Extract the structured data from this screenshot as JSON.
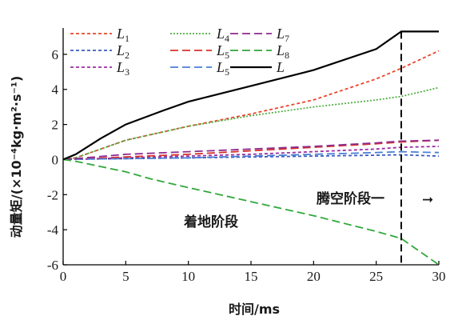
{
  "chart_data": {
    "type": "line",
    "xlabel": "时间/ms",
    "ylabel": "动量矩/(×10⁻⁴kg·m²·s⁻¹)",
    "xlim": [
      0,
      30
    ],
    "ylim": [
      -6,
      7.5
    ],
    "xticks": [
      0,
      5,
      10,
      15,
      20,
      25,
      30
    ],
    "yticks": [
      -6,
      -4,
      -2,
      0,
      2,
      4,
      6
    ],
    "grid": false,
    "legend_position": "top",
    "annotations": {
      "phase_change_x": 27,
      "landing_phase": "着地阶段",
      "flight_phase": "腾空阶段一",
      "arrow": "➞"
    },
    "series": [
      {
        "name": "L1",
        "base": "L",
        "sub": "1",
        "color": "#e8452c",
        "dash": "4,3",
        "x": [
          0,
          1,
          5,
          10,
          15,
          20,
          25,
          27,
          30
        ],
        "y": [
          0,
          0.1,
          1.1,
          1.9,
          2.6,
          3.4,
          4.6,
          5.2,
          6.2
        ]
      },
      {
        "name": "L2",
        "base": "L",
        "sub": "2",
        "color": "#3a5bbf",
        "dash": "4,3",
        "x": [
          0,
          1,
          5,
          10,
          15,
          20,
          25,
          27,
          30
        ],
        "y": [
          0,
          0.02,
          0.05,
          0.1,
          0.15,
          0.2,
          0.25,
          0.27,
          0.2
        ]
      },
      {
        "name": "L3",
        "base": "L",
        "sub": "3",
        "color": "#9a2ea1",
        "dash": "4,3",
        "x": [
          0,
          1,
          5,
          10,
          15,
          20,
          25,
          27,
          30
        ],
        "y": [
          0,
          0.02,
          0.1,
          0.2,
          0.3,
          0.45,
          0.6,
          0.7,
          0.75
        ]
      },
      {
        "name": "L4",
        "base": "L",
        "sub": "4",
        "color": "#4fae43",
        "dash": "2,2",
        "x": [
          0,
          1,
          5,
          10,
          15,
          20,
          25,
          27,
          30
        ],
        "y": [
          0,
          0.1,
          1.1,
          1.9,
          2.5,
          3.0,
          3.4,
          3.6,
          4.1
        ]
      },
      {
        "name": "L5",
        "base": "L",
        "sub": "5",
        "color": "#d9302c",
        "dash": "10,5",
        "x": [
          0,
          1,
          5,
          10,
          15,
          20,
          25,
          27,
          30
        ],
        "y": [
          0,
          0.02,
          0.15,
          0.3,
          0.5,
          0.7,
          0.9,
          1.0,
          1.1
        ]
      },
      {
        "name": "L5",
        "base": "L",
        "sub": "5",
        "color": "#4a7fd6",
        "dash": "10,5",
        "x": [
          0,
          1,
          5,
          10,
          15,
          20,
          25,
          27,
          30
        ],
        "y": [
          0,
          0.02,
          0.05,
          0.1,
          0.2,
          0.3,
          0.4,
          0.45,
          0.4
        ]
      },
      {
        "name": "L7",
        "base": "L",
        "sub": "7",
        "color": "#8e2a8e",
        "dash": "10,5",
        "x": [
          0,
          1,
          5,
          10,
          15,
          20,
          25,
          27,
          30
        ],
        "y": [
          0,
          0.05,
          0.3,
          0.45,
          0.6,
          0.75,
          0.95,
          1.05,
          1.1
        ]
      },
      {
        "name": "L8",
        "base": "L",
        "sub": "8",
        "color": "#2fa83a",
        "dash": "10,5",
        "x": [
          0,
          1,
          3,
          5,
          7,
          10,
          15,
          20,
          25,
          27,
          29,
          30
        ],
        "y": [
          0,
          -0.1,
          -0.4,
          -0.7,
          -1.1,
          -1.6,
          -2.4,
          -3.2,
          -4.1,
          -4.5,
          -5.5,
          -6.0
        ]
      },
      {
        "name": "L",
        "base": "L",
        "sub": "",
        "color": "#000000",
        "dash": "",
        "x": [
          0,
          1,
          3,
          5,
          8,
          10,
          15,
          20,
          25,
          27,
          30
        ],
        "y": [
          0,
          0.3,
          1.2,
          2.0,
          2.8,
          3.3,
          4.2,
          5.1,
          6.3,
          7.3,
          7.3
        ]
      }
    ]
  }
}
